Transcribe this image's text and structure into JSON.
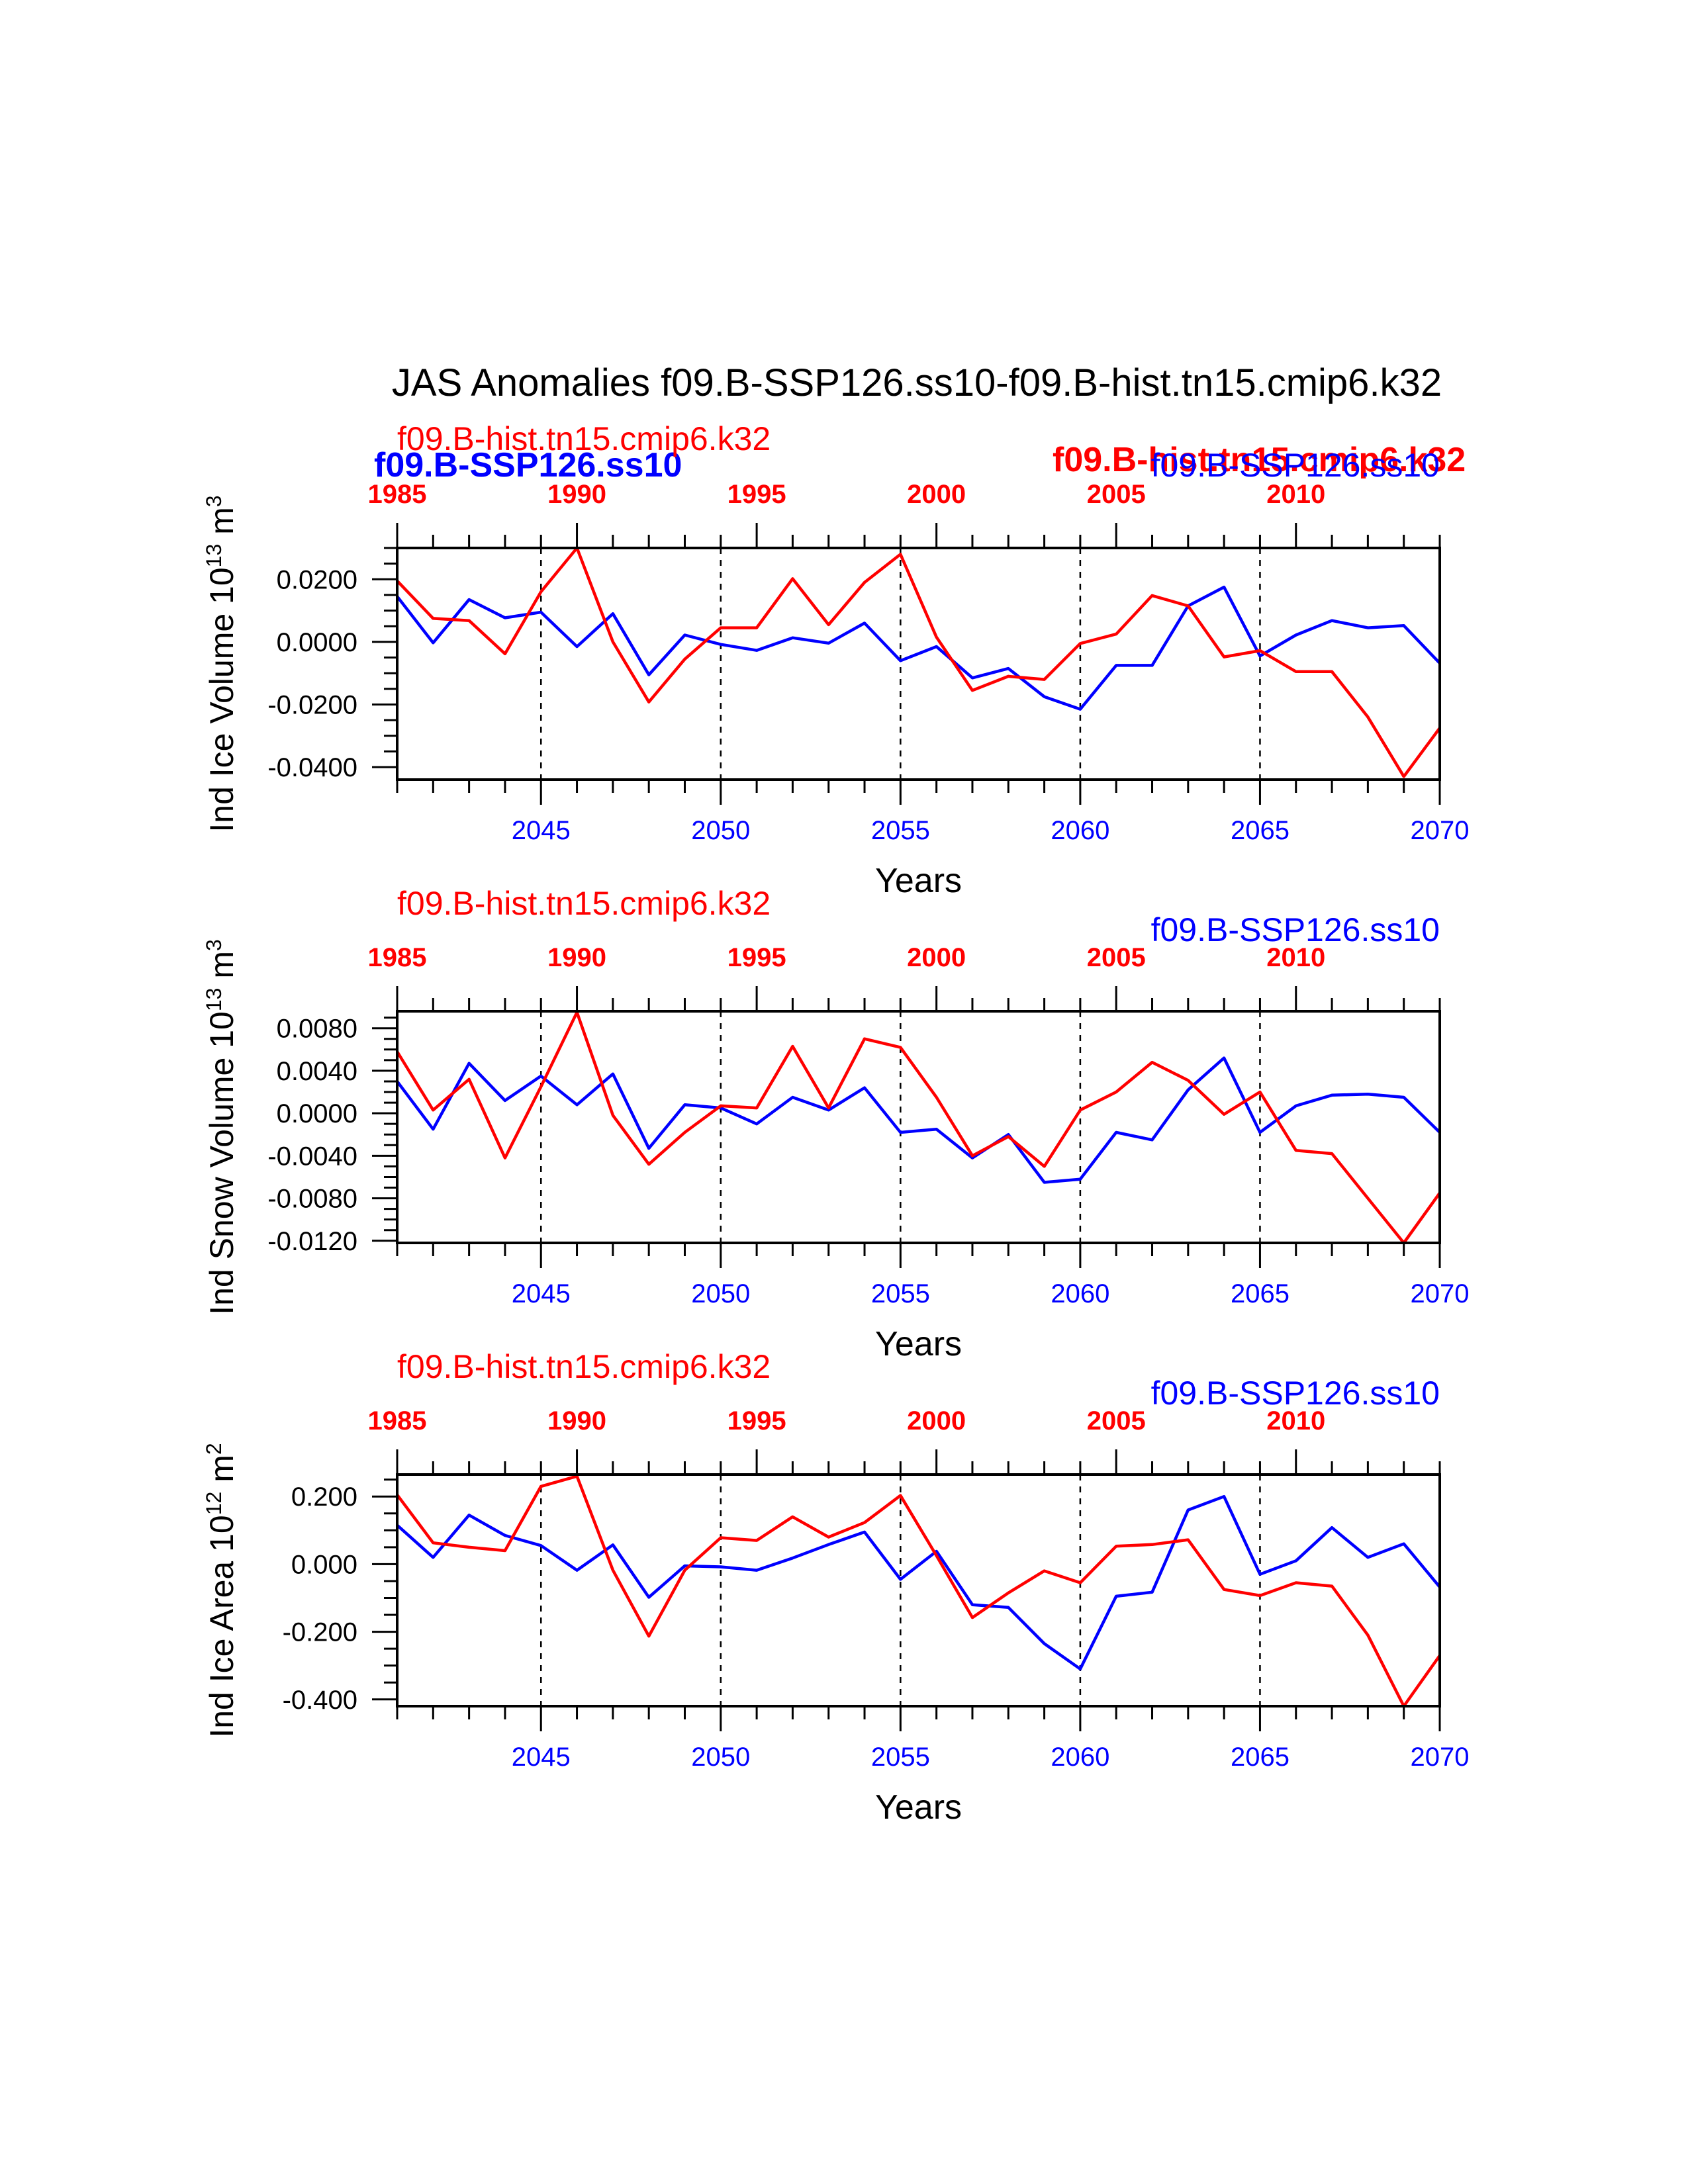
{
  "title": "JAS Anomalies f09.B-SSP126.ss10-f09.B-hist.tn15.cmip6.k32",
  "colors": {
    "ssp": "#0000ff",
    "hist": "#ff0000",
    "axis": "#000000"
  },
  "overlap_labels": {
    "ssp": "f09.B-SSP126.ss10",
    "hist": "f09.B-hist.tn15.cmip6.k32"
  },
  "chart_data": [
    {
      "type": "line",
      "ylabel_main": "Ind Ice Volume 10",
      "ylabel_exp": "13",
      "ylabel_tail": " m",
      "ylabel_unit_exp": "3",
      "xlabel": "Years",
      "hist_label": "f09.B-hist.tn15.cmip6.k32",
      "ssp_label": "f09.B-SSP126.ss10",
      "bottom_x_range": [
        2041,
        2070
      ],
      "bottom_x_ticks": [
        "2045",
        "2050",
        "2055",
        "2060",
        "2065",
        "2070"
      ],
      "top_x_range": [
        1985,
        2014
      ],
      "top_x_ticks": [
        "1985",
        "1990",
        "1995",
        "2000",
        "2005",
        "2010"
      ],
      "ylim": [
        -0.044,
        0.03
      ],
      "y_ticks": [
        {
          "v": 0.02,
          "label": "0.0200"
        },
        {
          "v": 0.0,
          "label": "0.0000"
        },
        {
          "v": -0.02,
          "label": "-0.0200"
        },
        {
          "v": -0.04,
          "label": "-0.0400"
        }
      ],
      "series": [
        {
          "name": "f09.B-SSP126.ss10",
          "color": "#0000ff",
          "x": [
            2041,
            2042,
            2043,
            2044,
            2045,
            2046,
            2047,
            2048,
            2049,
            2050,
            2051,
            2052,
            2053,
            2054,
            2055,
            2056,
            2057,
            2058,
            2059,
            2060,
            2061,
            2062,
            2063,
            2064,
            2065,
            2066,
            2067,
            2068,
            2069,
            2070
          ],
          "values": [
            0.0145,
            -0.0003,
            0.0135,
            0.0077,
            0.0095,
            -0.0015,
            0.009,
            -0.0105,
            0.0022,
            -0.0008,
            -0.0027,
            0.0013,
            -0.0004,
            0.006,
            -0.006,
            -0.0015,
            -0.0115,
            -0.0085,
            -0.0175,
            -0.0215,
            -0.0075,
            -0.0075,
            0.0115,
            0.0175,
            -0.0045,
            0.0022,
            0.0068,
            0.0045,
            0.0052,
            -0.0068
          ]
        },
        {
          "name": "f09.B-hist.tn15.cmip6.k32",
          "color": "#ff0000",
          "x": [
            2041,
            2042,
            2043,
            2044,
            2045,
            2046,
            2047,
            2048,
            2049,
            2050,
            2051,
            2052,
            2053,
            2054,
            2055,
            2056,
            2057,
            2058,
            2059,
            2060,
            2061,
            2062,
            2063,
            2064,
            2065,
            2066,
            2067,
            2068,
            2069,
            2070
          ],
          "values": [
            0.0195,
            0.0075,
            0.0068,
            -0.0038,
            0.016,
            0.03,
            0.0,
            -0.0192,
            -0.0055,
            0.0045,
            0.0045,
            0.0202,
            0.0055,
            0.019,
            0.028,
            0.0015,
            -0.0155,
            -0.011,
            -0.012,
            -0.0005,
            0.0025,
            0.0148,
            0.0115,
            -0.0048,
            -0.0028,
            -0.0095,
            -0.0095,
            -0.024,
            -0.043,
            -0.0275
          ]
        }
      ]
    },
    {
      "type": "line",
      "ylabel_main": "Ind Snow Volume 10",
      "ylabel_exp": "13",
      "ylabel_tail": " m",
      "ylabel_unit_exp": "3",
      "xlabel": "Years",
      "hist_label": "f09.B-hist.tn15.cmip6.k32",
      "ssp_label": "f09.B-SSP126.ss10",
      "bottom_x_range": [
        2041,
        2070
      ],
      "bottom_x_ticks": [
        "2045",
        "2050",
        "2055",
        "2060",
        "2065",
        "2070"
      ],
      "top_x_range": [
        1985,
        2014
      ],
      "top_x_ticks": [
        "1985",
        "1990",
        "1995",
        "2000",
        "2005",
        "2010"
      ],
      "ylim": [
        -0.0122,
        0.0096
      ],
      "y_ticks": [
        {
          "v": 0.008,
          "label": "0.0080"
        },
        {
          "v": 0.004,
          "label": "0.0040"
        },
        {
          "v": 0.0,
          "label": "0.0000"
        },
        {
          "v": -0.004,
          "label": "-0.0040"
        },
        {
          "v": -0.008,
          "label": "-0.0080"
        },
        {
          "v": -0.012,
          "label": "-0.0120"
        }
      ],
      "series": [
        {
          "name": "f09.B-SSP126.ss10",
          "color": "#0000ff",
          "x": [
            2041,
            2042,
            2043,
            2044,
            2045,
            2046,
            2047,
            2048,
            2049,
            2050,
            2051,
            2052,
            2053,
            2054,
            2055,
            2056,
            2057,
            2058,
            2059,
            2060,
            2061,
            2062,
            2063,
            2064,
            2065,
            2066,
            2067,
            2068,
            2069,
            2070
          ],
          "values": [
            0.003,
            -0.0015,
            0.0047,
            0.0012,
            0.0035,
            0.0008,
            0.0037,
            -0.0033,
            0.0008,
            0.0005,
            -0.001,
            0.0015,
            0.0003,
            0.0024,
            -0.0018,
            -0.0015,
            -0.0042,
            -0.002,
            -0.0065,
            -0.0062,
            -0.0018,
            -0.0025,
            0.0022,
            0.0052,
            -0.0018,
            0.0007,
            0.0017,
            0.0018,
            0.0015,
            -0.0018
          ]
        },
        {
          "name": "f09.B-hist.tn15.cmip6.k32",
          "color": "#ff0000",
          "x": [
            2041,
            2042,
            2043,
            2044,
            2045,
            2046,
            2047,
            2048,
            2049,
            2050,
            2051,
            2052,
            2053,
            2054,
            2055,
            2056,
            2057,
            2058,
            2059,
            2060,
            2061,
            2062,
            2063,
            2064,
            2065,
            2066,
            2067,
            2068,
            2069,
            2070
          ],
          "values": [
            0.0058,
            0.0003,
            0.0032,
            -0.0042,
            0.0025,
            0.0095,
            -0.0002,
            -0.0048,
            -0.0018,
            0.0007,
            0.0005,
            0.0063,
            0.0005,
            0.007,
            0.0062,
            0.0015,
            -0.004,
            -0.0022,
            -0.005,
            0.0003,
            0.002,
            0.0048,
            0.0031,
            -0.0001,
            0.002,
            -0.0035,
            -0.0038,
            -0.008,
            -0.0122,
            -0.0075
          ]
        }
      ]
    },
    {
      "type": "line",
      "ylabel_main": "Ind Ice Area 10",
      "ylabel_exp": "12",
      "ylabel_tail": " m",
      "ylabel_unit_exp": "2",
      "xlabel": "Years",
      "hist_label": "f09.B-hist.tn15.cmip6.k32",
      "ssp_label": "f09.B-SSP126.ss10",
      "bottom_x_range": [
        2041,
        2070
      ],
      "bottom_x_ticks": [
        "2045",
        "2050",
        "2055",
        "2060",
        "2065",
        "2070"
      ],
      "top_x_range": [
        1985,
        2014
      ],
      "top_x_ticks": [
        "1985",
        "1990",
        "1995",
        "2000",
        "2005",
        "2010"
      ],
      "ylim": [
        -0.42,
        0.265
      ],
      "y_ticks": [
        {
          "v": 0.2,
          "label": "0.200"
        },
        {
          "v": 0.0,
          "label": "0.000"
        },
        {
          "v": -0.2,
          "label": "-0.200"
        },
        {
          "v": -0.4,
          "label": "-0.400"
        }
      ],
      "series": [
        {
          "name": "f09.B-SSP126.ss10",
          "color": "#0000ff",
          "x": [
            2041,
            2042,
            2043,
            2044,
            2045,
            2046,
            2047,
            2048,
            2049,
            2050,
            2051,
            2052,
            2053,
            2054,
            2055,
            2056,
            2057,
            2058,
            2059,
            2060,
            2061,
            2062,
            2063,
            2064,
            2065,
            2066,
            2067,
            2068,
            2069,
            2070
          ],
          "values": [
            0.115,
            0.02,
            0.145,
            0.085,
            0.055,
            -0.018,
            0.057,
            -0.098,
            -0.005,
            -0.008,
            -0.018,
            0.018,
            0.058,
            0.095,
            -0.045,
            0.038,
            -0.12,
            -0.128,
            -0.235,
            -0.31,
            -0.095,
            -0.083,
            0.16,
            0.2,
            -0.03,
            0.01,
            0.108,
            0.02,
            0.06,
            -0.068
          ]
        },
        {
          "name": "f09.B-hist.tn15.cmip6.k32",
          "color": "#ff0000",
          "x": [
            2041,
            2042,
            2043,
            2044,
            2045,
            2046,
            2047,
            2048,
            2049,
            2050,
            2051,
            2052,
            2053,
            2054,
            2055,
            2056,
            2057,
            2058,
            2059,
            2060,
            2061,
            2062,
            2063,
            2064,
            2065,
            2066,
            2067,
            2068,
            2069,
            2070
          ],
          "values": [
            0.205,
            0.063,
            0.05,
            0.04,
            0.23,
            0.26,
            -0.018,
            -0.213,
            -0.018,
            0.078,
            0.07,
            0.14,
            0.08,
            0.123,
            0.203,
            0.025,
            -0.158,
            -0.085,
            -0.02,
            -0.055,
            0.053,
            0.058,
            0.072,
            -0.075,
            -0.093,
            -0.055,
            -0.065,
            -0.21,
            -0.42,
            -0.27
          ]
        }
      ]
    }
  ]
}
